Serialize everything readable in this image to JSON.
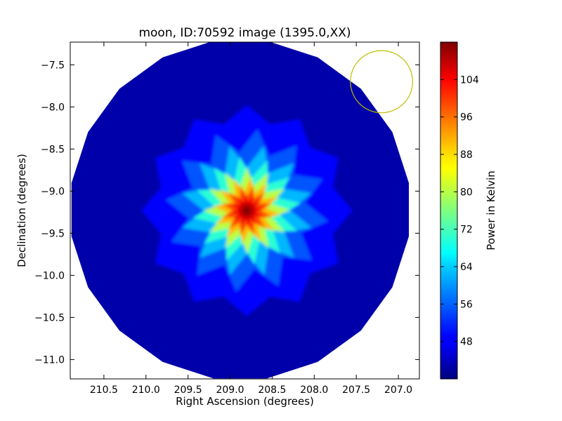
{
  "chart_data": {
    "type": "heatmap",
    "title": "moon, ID:70592 image (1395.0,XX)",
    "xlabel": "Right Ascension (degrees)",
    "ylabel": "Declination (degrees)",
    "xlim": [
      210.9,
      206.75
    ],
    "ylim": [
      -11.23,
      -7.23
    ],
    "x_ticks": [
      210.5,
      210.0,
      209.5,
      209.0,
      208.5,
      208.0,
      207.5,
      207.0
    ],
    "x_tick_labels": [
      "210.5",
      "210.0",
      "209.5",
      "209.0",
      "208.5",
      "208.0",
      "207.5",
      "207.0"
    ],
    "y_ticks": [
      -7.5,
      -8.0,
      -8.5,
      -9.0,
      -9.5,
      -10.0,
      -10.5,
      -11.0
    ],
    "y_tick_labels": [
      "−7.5",
      "−8.0",
      "−8.5",
      "−9.0",
      "−9.5",
      "−10.0",
      "−10.5",
      "−11.0"
    ],
    "colorbar": {
      "label": "Power in Kelvin",
      "range": [
        40,
        112
      ],
      "ticks": [
        48,
        56,
        64,
        72,
        80,
        88,
        96,
        104
      ],
      "tick_labels": [
        "48",
        "56",
        "64",
        "72",
        "80",
        "88",
        "96",
        "104"
      ],
      "colormap": "jet"
    },
    "field": {
      "center_ra": 208.88,
      "center_dec": -9.22,
      "radius_deg": 2.03,
      "sides": 20,
      "background_value": 43
    },
    "source": {
      "ra": 208.8,
      "dec": -9.23,
      "peak_value": 112,
      "core_radius_deg": 0.3,
      "spikes": 12
    },
    "beam_circle": {
      "ra": 207.2,
      "dec": -7.7,
      "radius_deg": 0.37,
      "color": "#bfbf00"
    },
    "grid": false,
    "legend": "none"
  }
}
